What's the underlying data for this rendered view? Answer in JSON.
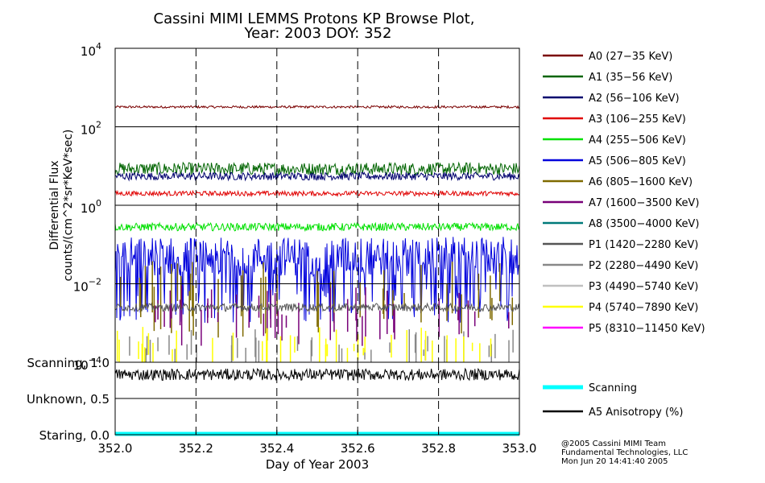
{
  "title": {
    "line1": "Cassini MIMI LEMMS Protons KP Browse Plot,",
    "line2": "Year: 2003 DOY: 352"
  },
  "credits": {
    "line1": "@2005 Cassini MIMI Team",
    "line2": "Fundamental Technologies, LLC",
    "line3": "Mon Jun 20 14:41:40 2005"
  },
  "chart_data": {
    "type": "line",
    "xlabel": "Day of Year 2003",
    "x_ticks": [
      "352.0",
      "352.2",
      "352.4",
      "352.6",
      "352.8",
      "353.0"
    ],
    "xlim": [
      352.0,
      353.0
    ],
    "xgrid_dashed_at": [
      352.2,
      352.4,
      352.6,
      352.8
    ],
    "upper_panel": {
      "ylabel_line1": "Differential Flux",
      "ylabel_line2": "counts/(cm^2*sr*KeV*sec)",
      "yscale": "log",
      "ylim": [
        0.0001,
        10000
      ],
      "y_ticks": [
        {
          "base": "10",
          "exp": "4",
          "value": 10000
        },
        {
          "base": "10",
          "exp": "2",
          "value": 100
        },
        {
          "base": "10",
          "exp": "0",
          "value": 1
        },
        {
          "base": "10",
          "exp": "−2",
          "value": 0.01
        },
        {
          "base": "10",
          "exp": "−4",
          "value": 0.0001
        }
      ],
      "series": [
        {
          "name": "A0 (27−35 KeV)",
          "color": "#7a0000",
          "level": 320,
          "noise": 0.03,
          "style": "line"
        },
        {
          "name": "A1 (35−56 KeV)",
          "color": "#006400",
          "level": 8.5,
          "noise": 0.16,
          "style": "line"
        },
        {
          "name": "A2 (56−106 KeV)",
          "color": "#00006e",
          "level": 5.5,
          "noise": 0.1,
          "style": "line"
        },
        {
          "name": "A3 (106−255 KeV)",
          "color": "#e00000",
          "level": 2.0,
          "noise": 0.06,
          "style": "line"
        },
        {
          "name": "A4 (255−506 KeV)",
          "color": "#00e000",
          "level": 0.28,
          "noise": 0.1,
          "style": "line"
        },
        {
          "name": "A5 (506−805 KeV)",
          "color": "#0000dc",
          "level": 0.05,
          "noise": 0.5,
          "style": "line"
        },
        {
          "name": "A6 (805−1600 KeV)",
          "color": "#7f6a00",
          "level": 0.004,
          "noise": 0.5,
          "style": "spikes"
        },
        {
          "name": "A7 (1600−3500 KeV)",
          "color": "#780078",
          "level": 0.0015,
          "noise": 0.4,
          "style": "spikes"
        },
        {
          "name": "A8 (3500−4000 KeV)",
          "color": "#007a7a",
          "level": null,
          "noise": 0,
          "style": "none"
        },
        {
          "name": "P1 (1420−2280 KeV)",
          "color": "#555555",
          "level": 0.0025,
          "noise": 0.1,
          "style": "line"
        },
        {
          "name": "P2 (2280−4490 KeV)",
          "color": "#888888",
          "level": 0.0002,
          "noise": 0.3,
          "style": "spikes"
        },
        {
          "name": "P3 (4490−5740 KeV)",
          "color": "#c0c0c0",
          "level": null,
          "noise": 0,
          "style": "none"
        },
        {
          "name": "P4 (5740−7890 KeV)",
          "color": "#ffff00",
          "level": 0.0002,
          "noise": 0.3,
          "style": "spikes"
        },
        {
          "name": "P5 (8310−11450 KeV)",
          "color": "#ff00ff",
          "level": null,
          "noise": 0,
          "style": "none"
        }
      ]
    },
    "lower_panel": {
      "y_ticks": [
        {
          "label": "Scanning, 1.0",
          "value": 1.0
        },
        {
          "label": "Unknown, 0.5",
          "value": 0.5
        },
        {
          "label": "Staring, 0.0",
          "value": 0.0
        }
      ],
      "ylim": [
        0.0,
        1.0
      ],
      "series": [
        {
          "name": "Scanning",
          "color": "#00ffff",
          "level": 0.0,
          "noise": 0,
          "style": "thick"
        },
        {
          "name": "A5 Anisotropy (%)",
          "color": "#000000",
          "level": 0.83,
          "noise": 0.08,
          "style": "line"
        }
      ]
    }
  }
}
